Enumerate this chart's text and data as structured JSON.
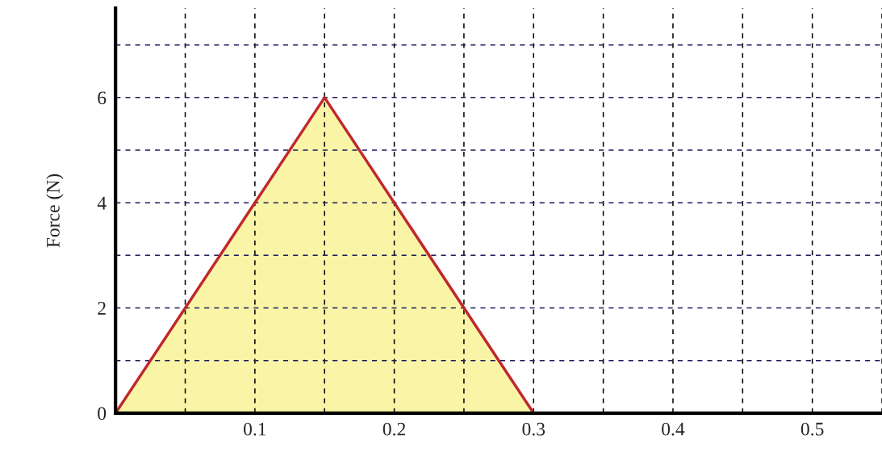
{
  "chart_data": {
    "type": "area",
    "ylabel": "Force (N)",
    "x": [
      0,
      0.15,
      0.3
    ],
    "series": [
      {
        "color": "#c0282d",
        "values": [
          0,
          6,
          0
        ]
      }
    ],
    "xlim": [
      0,
      0.55
    ],
    "ylim": [
      0,
      7.7
    ],
    "xticks": [
      {
        "value": 0,
        "label": null
      },
      {
        "value": 0.05,
        "label": null
      },
      0.1,
      {
        "value": 0.15,
        "label": null
      },
      0.2,
      {
        "value": 0.25,
        "label": null
      },
      0.3,
      {
        "value": 0.35,
        "label": null
      },
      0.4,
      {
        "value": 0.45,
        "label": null
      },
      0.5,
      {
        "value": 0.55,
        "label": null
      }
    ],
    "yticks": [
      0,
      {
        "value": 1,
        "label": null
      },
      2,
      {
        "value": 3,
        "label": null
      },
      4,
      {
        "value": 5,
        "label": null
      },
      6,
      {
        "value": 7,
        "label": null
      }
    ],
    "grid": true,
    "line_style": "solid"
  }
}
